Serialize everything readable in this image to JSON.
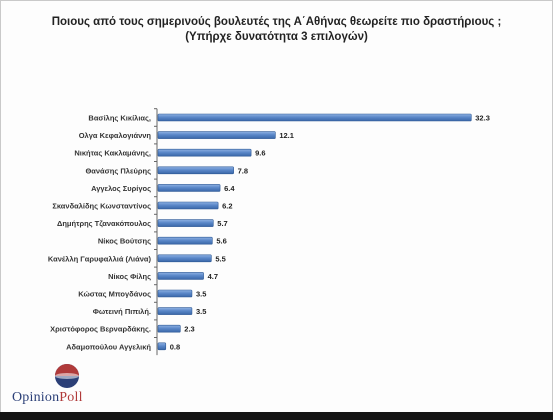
{
  "title_line1": "Ποιους από τους σημερινούς βουλευτές της Α΄Αθήνας θεωρείτε πιο δραστήριους ;",
  "title_line2": "(Υπήρχε δυνατότητα 3 επιλογών)",
  "logo": {
    "part1": "Opinion",
    "part2": "Poll"
  },
  "colors": {
    "bar": "#4f7fc2",
    "bar_edge": "#2f5a96",
    "axis": "#666666"
  },
  "chart_data": {
    "type": "bar",
    "orientation": "horizontal",
    "categories": [
      "Βασίλης Κικίλιας,",
      "Ολγα Κεφαλογιάννη",
      "Νικήτας Κακλαμάνης,",
      "Θανάσης Πλεύρης",
      "Αγγελος Συρίγος",
      "Σκανδαλίδης Κωνσταντίνος",
      "Δημήτρης Τζανακόπουλος",
      "Νίκος Βούτσης",
      "Κανέλλη Γαρυφαλλιά (Λιάνα)",
      "Νίκος Φίλης",
      "Κώστας Μπογδάνος",
      "Φωτεινή Πιπιλή.",
      "Χριστόφορος Βερναρδάκης.",
      "Αδαμοπούλου Αγγελική"
    ],
    "values": [
      32.3,
      12.1,
      9.6,
      7.8,
      6.4,
      6.2,
      5.7,
      5.6,
      5.5,
      4.7,
      3.5,
      3.5,
      2.3,
      0.8
    ],
    "value_labels": [
      "32.3",
      "12.1",
      "9.6",
      "7.8",
      "6.4",
      "6.2",
      "5.7",
      "5.6",
      "5.5",
      "4.7",
      "3.5",
      "3.5",
      "2.3",
      "0.8"
    ],
    "xlim": [
      0,
      33.2
    ],
    "grid": false,
    "legend": "none"
  }
}
